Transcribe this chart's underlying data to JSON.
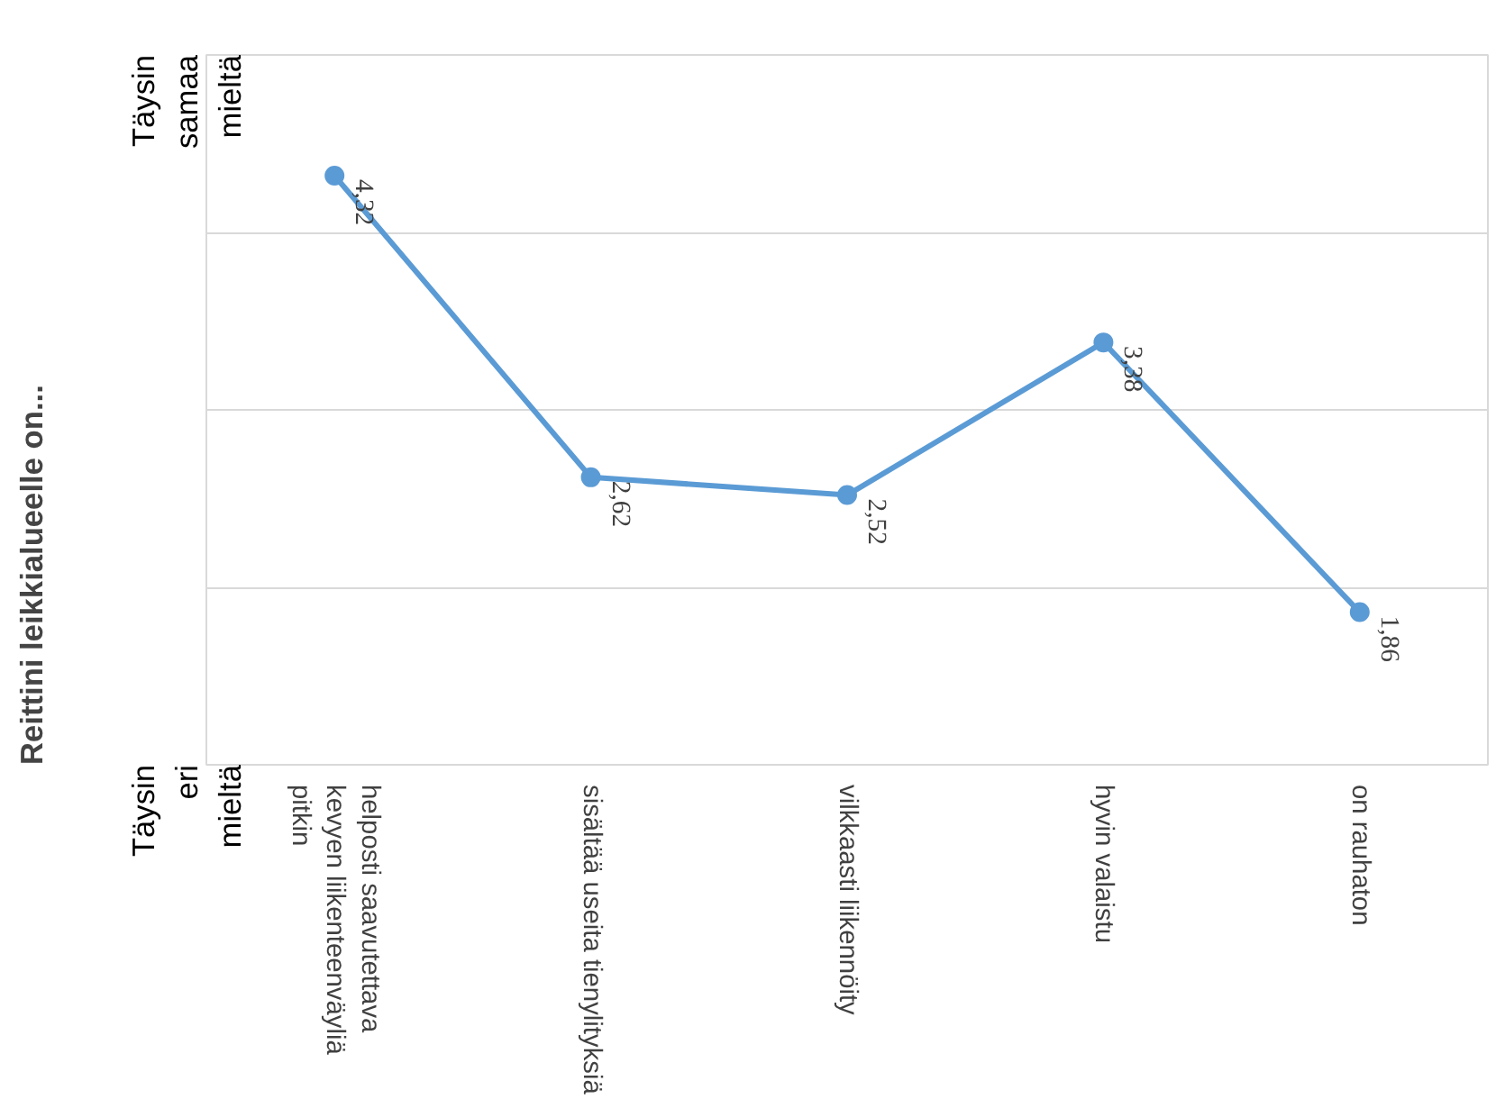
{
  "chart_data": {
    "type": "line",
    "categories": [
      "helposti saavutettava\nkevyen liikenteenväyliä\npitkin",
      "sisältää useita tienylityksiä",
      "vilkkaasti liikennöity",
      "hyvin valaistu",
      "on rauhaton"
    ],
    "series": [
      {
        "color": "#5b9bd5",
        "values": [
          4.32,
          2.62,
          2.52,
          3.38,
          1.86
        ],
        "value_labels": [
          "4,32",
          "2,62",
          "2,52",
          "3,38",
          "1,86"
        ]
      }
    ],
    "ylim": [
      1,
      5
    ],
    "annotations": [
      "Reittini leikkialueelle on...",
      "Täysin\neri\nmieltä",
      "Täysin\nsamaa\nmieltä"
    ],
    "grid": "y",
    "marker": "circle",
    "line_style": "solid"
  }
}
